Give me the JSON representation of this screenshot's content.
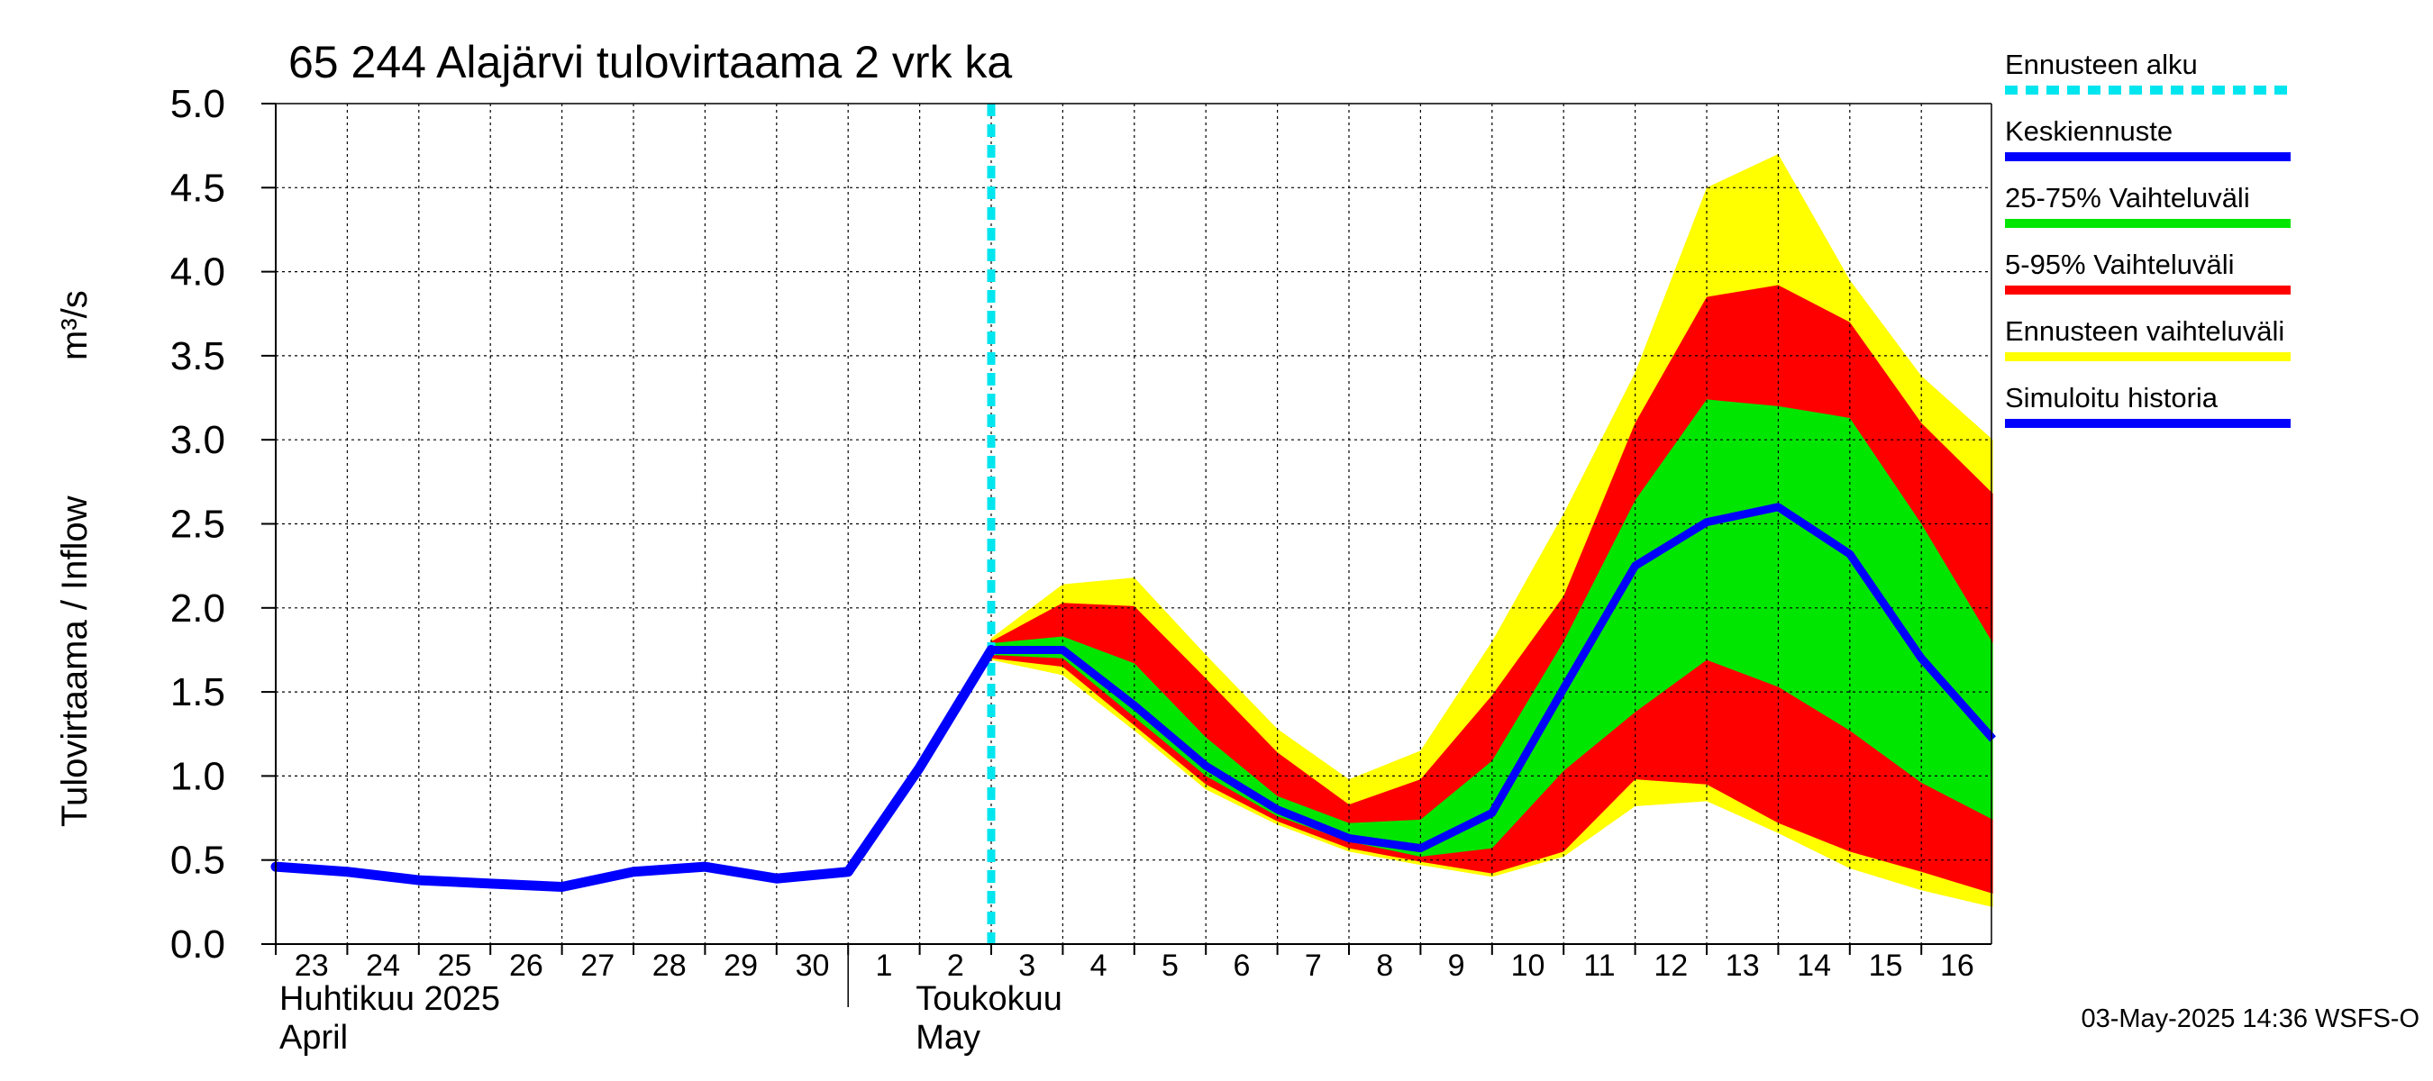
{
  "chart_data": {
    "type": "area",
    "title": "65 244 Alajärvi tulovirtaama 2 vrk ka",
    "ylabel": "Tulovirtaama / Inflow",
    "yunit": "m³/s",
    "ylim": [
      0.0,
      5.0
    ],
    "yticks": [
      "0.0",
      "0.5",
      "1.0",
      "1.5",
      "2.0",
      "2.5",
      "3.0",
      "3.5",
      "4.0",
      "4.5",
      "5.0"
    ],
    "grid": true,
    "legend_placement": "right",
    "xtick_labels": [
      "23",
      "24",
      "25",
      "26",
      "27",
      "28",
      "29",
      "30",
      "1",
      "2",
      "3",
      "4",
      "5",
      "6",
      "7",
      "8",
      "9",
      "10",
      "11",
      "12",
      "13",
      "14",
      "15",
      "16"
    ],
    "month_labels": [
      {
        "fi": "Huhtikuu  2025",
        "en": "April"
      },
      {
        "fi": "Toukokuu",
        "en": "May"
      }
    ],
    "dates": [
      "2025-04-23",
      "2025-04-24",
      "2025-04-25",
      "2025-04-26",
      "2025-04-27",
      "2025-04-28",
      "2025-04-29",
      "2025-04-30",
      "2025-05-01",
      "2025-05-02",
      "2025-05-03",
      "2025-05-04",
      "2025-05-05",
      "2025-05-06",
      "2025-05-07",
      "2025-05-08",
      "2025-05-09",
      "2025-05-10",
      "2025-05-11",
      "2025-05-12",
      "2025-05-13",
      "2025-05-14",
      "2025-05-15",
      "2025-05-16",
      "2025-05-17"
    ],
    "forecast_start": "2025-05-03",
    "history": {
      "dates": [
        "2025-04-23",
        "2025-04-24",
        "2025-04-25",
        "2025-04-26",
        "2025-04-27",
        "2025-04-28",
        "2025-04-29",
        "2025-04-30",
        "2025-05-01",
        "2025-05-02",
        "2025-05-03"
      ],
      "values": [
        0.46,
        0.43,
        0.38,
        0.36,
        0.34,
        0.43,
        0.46,
        0.39,
        0.43,
        1.05,
        1.75
      ]
    },
    "forecast": {
      "dates": [
        "2025-05-03",
        "2025-05-04",
        "2025-05-05",
        "2025-05-06",
        "2025-05-07",
        "2025-05-08",
        "2025-05-09",
        "2025-05-10",
        "2025-05-11",
        "2025-05-12",
        "2025-05-13",
        "2025-05-14",
        "2025-05-15",
        "2025-05-16",
        "2025-05-17"
      ],
      "median": [
        1.75,
        1.75,
        1.42,
        1.06,
        0.8,
        0.63,
        0.57,
        0.78,
        1.52,
        2.25,
        2.51,
        2.6,
        2.32,
        1.7,
        1.22
      ],
      "p25": [
        1.72,
        1.7,
        1.35,
        1.0,
        0.76,
        0.61,
        0.52,
        0.57,
        1.03,
        1.38,
        1.69,
        1.53,
        1.27,
        0.96,
        0.74
      ],
      "p75": [
        1.79,
        1.83,
        1.67,
        1.23,
        0.88,
        0.72,
        0.74,
        1.09,
        1.8,
        2.64,
        3.24,
        3.2,
        3.13,
        2.5,
        1.79
      ],
      "p05": [
        1.7,
        1.65,
        1.3,
        0.95,
        0.73,
        0.57,
        0.49,
        0.42,
        0.55,
        0.98,
        0.95,
        0.72,
        0.55,
        0.43,
        0.3
      ],
      "p95": [
        1.8,
        2.03,
        2.01,
        1.58,
        1.14,
        0.83,
        0.98,
        1.48,
        2.07,
        3.1,
        3.85,
        3.92,
        3.7,
        3.1,
        2.68
      ],
      "min": [
        1.69,
        1.6,
        1.27,
        0.92,
        0.71,
        0.55,
        0.47,
        0.4,
        0.52,
        0.82,
        0.85,
        0.66,
        0.45,
        0.32,
        0.22
      ],
      "max": [
        1.82,
        2.14,
        2.18,
        1.72,
        1.28,
        0.98,
        1.15,
        1.8,
        2.56,
        3.4,
        4.5,
        4.7,
        3.95,
        3.38,
        3.0
      ]
    },
    "legend": [
      {
        "label": "Ennusteen alku",
        "color": "#00e5ee",
        "style": "dashed"
      },
      {
        "label": "Keskiennuste",
        "color": "#0000ff",
        "style": "solid"
      },
      {
        "label": "25-75% Vaihteluväli",
        "color": "#00e600",
        "style": "solid"
      },
      {
        "label": "5-95% Vaihteluväli",
        "color": "#ff0000",
        "style": "solid"
      },
      {
        "label": "Ennusteen vaihteluväli",
        "color": "#ffff00",
        "style": "solid"
      },
      {
        "label": "Simuloitu historia",
        "color": "#0000ff",
        "style": "solid"
      }
    ],
    "colors": {
      "range": "#ffff00",
      "p5_95": "#ff0000",
      "p25_75": "#00e600",
      "median": "#0000ff",
      "history": "#0000ff",
      "forecast_start": "#00e5ee"
    }
  },
  "footer": "03-May-2025 14:36 WSFS-O"
}
